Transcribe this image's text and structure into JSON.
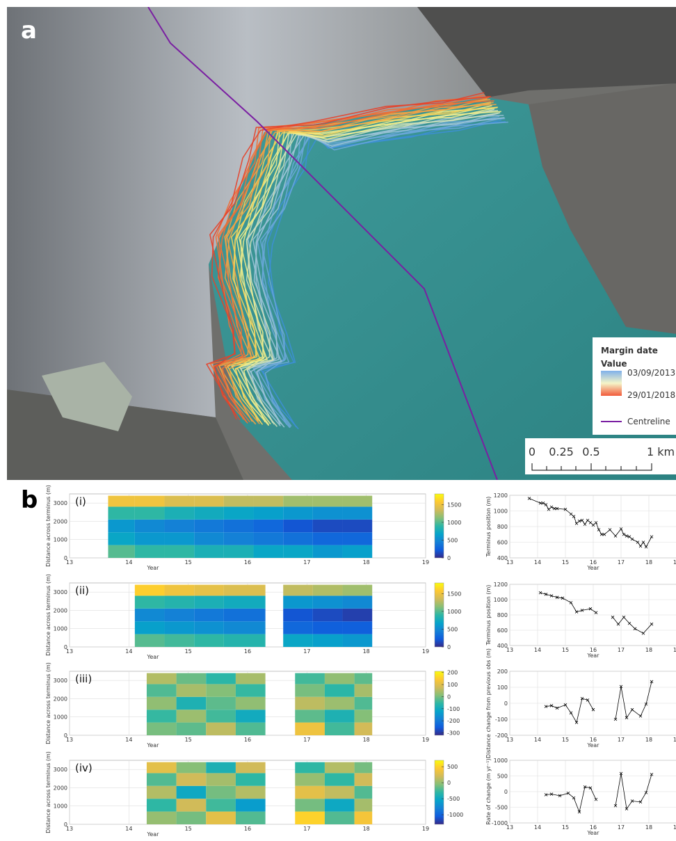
{
  "panel_labels": [
    "a",
    "b"
  ],
  "map": {
    "legend": {
      "title": "Margin date",
      "subtitle": "Value",
      "start": "03/09/2013",
      "end": "29/01/2018",
      "line": "Centreline"
    },
    "scale_bar": [
      "0",
      "0.25",
      "0.5",
      "1 km"
    ]
  },
  "chart_data": [
    {
      "type": "heatmap",
      "label": "(i)",
      "xlabel": "Year",
      "ylabel": "Distance across terminus (m)",
      "xlim": [
        13,
        19
      ],
      "xticks": [
        13,
        14,
        15,
        16,
        17,
        18,
        19
      ],
      "ylim": [
        0,
        3500
      ],
      "yticks": [
        0,
        1000,
        2000,
        3000
      ],
      "grid": true,
      "colormap": "parula",
      "clim": [
        0,
        1800
      ],
      "cticks": [
        0,
        500,
        1000,
        1500
      ],
      "x_bins": [
        13.65,
        14.1,
        14.6,
        15.1,
        15.6,
        16.1,
        16.6,
        17.1,
        17.6,
        18.1
      ],
      "y_bins": [
        0,
        700,
        1400,
        2100,
        2800,
        3400
      ],
      "values": [
        [
          1000,
          700,
          600,
          900,
          1500
        ],
        [
          900,
          600,
          500,
          900,
          1500
        ],
        [
          900,
          600,
          450,
          800,
          1400
        ],
        [
          800,
          500,
          400,
          750,
          1400
        ],
        [
          800,
          450,
          350,
          700,
          1300
        ],
        [
          700,
          400,
          300,
          650,
          1300
        ],
        [
          700,
          350,
          200,
          600,
          1200
        ],
        [
          600,
          300,
          150,
          550,
          1200
        ],
        [
          650,
          300,
          150,
          550,
          1200
        ]
      ]
    },
    {
      "type": "heatmap",
      "label": "(ii)",
      "xlabel": "Year",
      "ylabel": "Distance across terminus (m)",
      "xlim": [
        13,
        19
      ],
      "xticks": [
        13,
        14,
        15,
        16,
        17,
        18,
        19
      ],
      "ylim": [
        0,
        3500
      ],
      "yticks": [
        0,
        1000,
        2000,
        3000
      ],
      "grid": true,
      "colormap": "parula",
      "clim": [
        0,
        1800
      ],
      "cticks": [
        0,
        500,
        1000,
        1500
      ],
      "x_bins": [
        14.1,
        14.6,
        15.1,
        15.6,
        16.3,
        16.6,
        17.1,
        17.6,
        18.1
      ],
      "y_bins": [
        0,
        700,
        1400,
        2100,
        2800,
        3400
      ],
      "values": [
        [
          1000,
          650,
          500,
          900,
          1600
        ],
        [
          950,
          600,
          450,
          850,
          1500
        ],
        [
          900,
          550,
          400,
          800,
          1450
        ],
        [
          850,
          500,
          350,
          750,
          1400
        ],
        null,
        [
          700,
          300,
          200,
          600,
          1300
        ],
        [
          650,
          250,
          150,
          550,
          1250
        ],
        [
          600,
          250,
          100,
          500,
          1200
        ]
      ]
    },
    {
      "type": "heatmap",
      "label": "(iii)",
      "xlabel": "Year",
      "ylabel": "Distance across terminus (m)",
      "xlim": [
        13,
        19
      ],
      "xticks": [
        13,
        14,
        15,
        16,
        17,
        18,
        19
      ],
      "ylim": [
        0,
        3500
      ],
      "yticks": [
        0,
        1000,
        2000,
        3000
      ],
      "grid": true,
      "colormap": "parula",
      "clim": [
        -320,
        210
      ],
      "cticks": [
        -300,
        -200,
        -100,
        0,
        100,
        200
      ],
      "x_bins": [
        14.3,
        14.8,
        15.3,
        15.8,
        16.3,
        16.8,
        17.3,
        17.8,
        18.1
      ],
      "y_bins": [
        0,
        700,
        1400,
        2100,
        2800,
        3400
      ],
      "values": [
        [
          0,
          -50,
          20,
          -30,
          50
        ],
        [
          -20,
          30,
          -80,
          40,
          -10
        ],
        [
          60,
          -40,
          -20,
          10,
          -60
        ],
        [
          -30,
          -100,
          20,
          -50,
          40
        ],
        null,
        [
          120,
          -20,
          60,
          0,
          -40
        ],
        [
          -40,
          -80,
          30,
          -60,
          20
        ],
        [
          80,
          10,
          -30,
          40,
          -20
        ]
      ]
    },
    {
      "type": "heatmap",
      "label": "(iv)",
      "xlabel": "Year",
      "ylabel": "Distance across terminus (m)",
      "xlim": [
        13,
        19
      ],
      "xticks": [
        13,
        14,
        15,
        16,
        17,
        18,
        19
      ],
      "ylim": [
        0,
        3500
      ],
      "yticks": [
        0,
        1000,
        2000,
        3000
      ],
      "grid": true,
      "colormap": "parula",
      "clim": [
        -1300,
        700
      ],
      "cticks": [
        -1000,
        -500,
        0,
        500
      ],
      "x_bins": [
        14.3,
        14.8,
        15.3,
        15.8,
        16.3,
        16.8,
        17.3,
        17.8,
        18.1
      ],
      "y_bins": [
        0,
        700,
        1400,
        2100,
        2800,
        3400
      ],
      "values": [
        [
          0,
          -300,
          100,
          -200,
          300
        ],
        [
          -100,
          200,
          -500,
          200,
          -50
        ],
        [
          300,
          -250,
          -100,
          50,
          -400
        ],
        [
          -200,
          -600,
          100,
          -300,
          200
        ],
        null,
        [
          500,
          -100,
          300,
          0,
          -300
        ],
        [
          -200,
          -500,
          150,
          -300,
          100
        ],
        [
          400,
          50,
          -200,
          200,
          -100
        ]
      ]
    },
    {
      "type": "line",
      "xlabel": "Year",
      "ylabel": "Terminus position (m)",
      "color": "#000000",
      "grid": true,
      "xlim": [
        13,
        19
      ],
      "xticks": [
        13,
        14,
        15,
        16,
        17,
        18,
        19
      ],
      "ylim": [
        400,
        1200
      ],
      "yticks": [
        400,
        600,
        800,
        1000,
        1200
      ],
      "x": [
        13.7,
        14.1,
        14.2,
        14.3,
        14.4,
        14.5,
        14.6,
        14.7,
        15.0,
        15.2,
        15.3,
        15.4,
        15.5,
        15.6,
        15.7,
        15.8,
        15.9,
        16.0,
        16.1,
        16.2,
        16.3,
        16.4,
        16.6,
        16.8,
        17.0,
        17.1,
        17.2,
        17.3,
        17.4,
        17.6,
        17.7,
        17.8,
        17.9,
        18.1
      ],
      "values": [
        1160,
        1100,
        1100,
        1080,
        1020,
        1050,
        1030,
        1030,
        1020,
        960,
        930,
        840,
        870,
        880,
        830,
        880,
        850,
        820,
        850,
        760,
        700,
        700,
        760,
        680,
        770,
        700,
        680,
        670,
        640,
        600,
        550,
        600,
        540,
        670
      ]
    },
    {
      "type": "line",
      "xlabel": "Year",
      "ylabel": "Terminus position (m)",
      "color": "#000000",
      "grid": true,
      "xlim": [
        13,
        19
      ],
      "xticks": [
        13,
        14,
        15,
        16,
        17,
        18,
        19
      ],
      "ylim": [
        400,
        1200
      ],
      "yticks": [
        400,
        600,
        800,
        1000,
        1200
      ],
      "x": [
        14.1,
        14.3,
        14.5,
        14.7,
        14.9,
        15.2,
        15.4,
        15.6,
        15.9,
        16.1,
        null,
        16.7,
        16.9,
        17.1,
        17.3,
        17.5,
        17.8,
        18.1
      ],
      "values": [
        1090,
        1070,
        1050,
        1030,
        1020,
        960,
        840,
        860,
        880,
        830,
        null,
        770,
        680,
        770,
        690,
        620,
        560,
        680
      ]
    },
    {
      "type": "line",
      "xlabel": "Year",
      "ylabel": "Distance change from previous obs (m)",
      "color": "#000000",
      "grid": true,
      "xlim": [
        13,
        19
      ],
      "xticks": [
        13,
        14,
        15,
        16,
        17,
        18,
        19
      ],
      "ylim": [
        -200,
        200
      ],
      "yticks": [
        -200,
        -100,
        0,
        100,
        200
      ],
      "x": [
        14.3,
        14.5,
        14.7,
        15.0,
        15.2,
        15.4,
        15.6,
        15.8,
        16.0,
        null,
        16.8,
        17.0,
        17.2,
        17.4,
        17.7,
        17.9,
        18.1
      ],
      "values": [
        -20,
        -15,
        -30,
        -10,
        -60,
        -120,
        30,
        20,
        -40,
        null,
        -100,
        105,
        -90,
        -40,
        -80,
        -5,
        135
      ]
    },
    {
      "type": "line",
      "xlabel": "Year",
      "ylabel": "Rate of change (m yr⁻¹)",
      "color": "#000000",
      "grid": true,
      "xlim": [
        13,
        19
      ],
      "xticks": [
        13,
        14,
        15,
        16,
        17,
        18,
        19
      ],
      "ylim": [
        -1000,
        1000
      ],
      "yticks": [
        -1000,
        -500,
        0,
        500,
        1000
      ],
      "x": [
        14.3,
        14.5,
        14.8,
        15.1,
        15.3,
        15.5,
        15.7,
        15.9,
        16.1,
        null,
        16.8,
        17.0,
        17.2,
        17.4,
        17.7,
        17.9,
        18.1
      ],
      "values": [
        -100,
        -80,
        -130,
        -50,
        -200,
        -650,
        150,
        120,
        -250,
        null,
        -450,
        580,
        -550,
        -300,
        -330,
        -30,
        550
      ]
    }
  ]
}
